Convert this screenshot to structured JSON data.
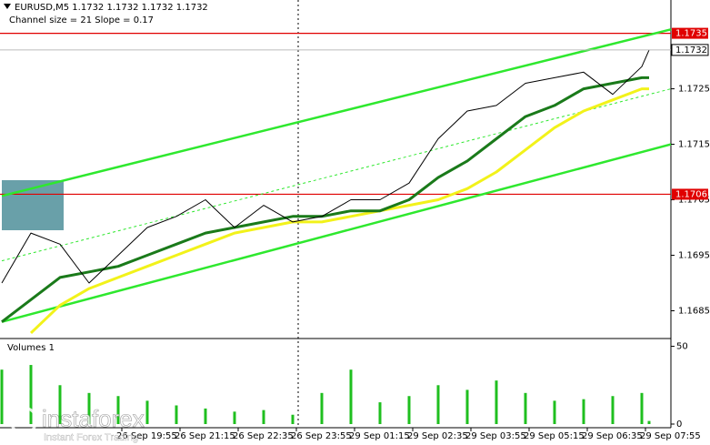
{
  "chart_data": {
    "type": "line",
    "title": "EURUSD,M5  1.1732 1.1732 1.1732 1.1732",
    "subtitle": "Channel size = 21 Slope = 0.17",
    "x": [
      0,
      8,
      16,
      24,
      32,
      40,
      48,
      56,
      64,
      72,
      80,
      88,
      96,
      104,
      112,
      120,
      128,
      136,
      144,
      152,
      160,
      168,
      176,
      178
    ],
    "xlim": [
      0,
      184
    ],
    "xticks": [
      {
        "value": 33,
        "label": "26 Sep 19:55"
      },
      {
        "value": 49,
        "label": "26 Sep 21:15"
      },
      {
        "value": 65,
        "label": "26 Sep 22:35"
      },
      {
        "value": 81,
        "label": "26 Sep 23:55"
      },
      {
        "value": 97,
        "label": "29 Sep 01:15"
      },
      {
        "value": 113,
        "label": "29 Sep 02:35"
      },
      {
        "value": 129,
        "label": "29 Sep 03:55"
      },
      {
        "value": 145,
        "label": "29 Sep 05:15"
      },
      {
        "value": 161,
        "label": "29 Sep 06:35"
      },
      {
        "value": 177,
        "label": "29 Sep 07:55"
      }
    ],
    "ylim": [
      1.168,
      1.1741
    ],
    "yticks": [
      1.1685,
      1.1695,
      1.1705,
      1.1715,
      1.1725
    ],
    "series": [
      {
        "color": "#000000",
        "width": 1,
        "values": [
          1.169,
          1.1699,
          1.1697,
          1.169,
          1.1695,
          1.17,
          1.1702,
          1.1705,
          1.17,
          1.1704,
          1.1701,
          1.1702,
          1.1705,
          1.1705,
          1.1708,
          1.1716,
          1.1721,
          1.1722,
          1.1726,
          1.1727,
          1.1728,
          1.1724,
          1.1729,
          1.1732
        ]
      },
      {
        "color": "#1a7a1a",
        "width": 3,
        "values": [
          1.1683,
          1.1687,
          1.1691,
          1.1692,
          1.1693,
          1.1695,
          1.1697,
          1.1699,
          1.17,
          1.1701,
          1.1702,
          1.1702,
          1.1703,
          1.1703,
          1.1705,
          1.1709,
          1.1712,
          1.1716,
          1.172,
          1.1722,
          1.1725,
          1.1726,
          1.1727,
          1.1727
        ]
      },
      {
        "color": "#f2f21a",
        "width": 3,
        "values": [
          null,
          1.1681,
          1.1686,
          1.1689,
          1.1691,
          1.1693,
          1.1695,
          1.1697,
          1.1699,
          1.17,
          1.1701,
          1.1701,
          1.1702,
          1.1703,
          1.1704,
          1.1705,
          1.1707,
          1.171,
          1.1714,
          1.1718,
          1.1721,
          1.1723,
          1.1725,
          1.1725
        ]
      }
    ],
    "channel": {
      "x": [
        0,
        184
      ],
      "color": "#2ee82e",
      "upper": [
        1.17057,
        1.17357
      ],
      "middle": [
        1.1694,
        1.1725
      ],
      "lower": [
        1.1683,
        1.1715
      ]
    },
    "levels": [
      {
        "value": 1.1735,
        "color": "#e00000"
      },
      {
        "value": 1.1706,
        "color": "#e00000"
      }
    ],
    "last_price": 1.1732,
    "volumes": {
      "title": "Volumes 1",
      "color": "#1fbf1f",
      "ylim": [
        0,
        55
      ],
      "yticks": [
        0,
        50
      ],
      "values": [
        35,
        38,
        25,
        20,
        18,
        15,
        12,
        10,
        8,
        9,
        6,
        20,
        35,
        14,
        18,
        25,
        22,
        28,
        20,
        15,
        16,
        18,
        20,
        2
      ]
    },
    "watermark": {
      "brand": "instaforex",
      "tagline": "Instant Forex Trading"
    }
  }
}
